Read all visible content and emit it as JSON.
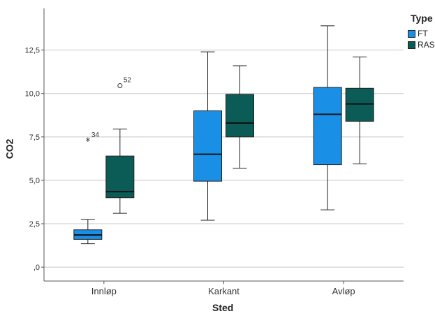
{
  "chart_data": {
    "type": "boxplot",
    "xlabel": "Sted",
    "ylabel": "CO2",
    "categories": [
      "Innløp",
      "Karkant",
      "Avløp"
    ],
    "ylim": [
      -0.8,
      14.9
    ],
    "yticks": [
      0,
      2.5,
      5,
      7.5,
      10,
      12.5
    ],
    "ytick_labels": [
      ",0",
      "2,5",
      "5,0",
      "7,5",
      "10,0",
      "12,5"
    ],
    "legend": {
      "title": "Type",
      "position": "top-right"
    },
    "grid": true,
    "series": [
      {
        "name": "FT",
        "color": "#1a8fe6",
        "boxes": [
          {
            "min": 1.35,
            "q1": 1.6,
            "median": 1.85,
            "q3": 2.15,
            "max": 2.75
          },
          {
            "min": 2.7,
            "q1": 4.95,
            "median": 6.5,
            "q3": 9.0,
            "max": 12.4
          },
          {
            "min": 3.3,
            "q1": 5.9,
            "median": 8.8,
            "q3": 10.35,
            "max": 13.9
          }
        ],
        "outliers": [
          {
            "category": "Innløp",
            "value": 7.3,
            "label": "34",
            "marker": "star"
          }
        ]
      },
      {
        "name": "RAS",
        "color": "#0b5b57",
        "boxes": [
          {
            "min": 3.1,
            "q1": 4.0,
            "median": 4.35,
            "q3": 6.4,
            "max": 7.95
          },
          {
            "min": 5.7,
            "q1": 7.5,
            "median": 8.3,
            "q3": 9.95,
            "max": 11.6
          },
          {
            "min": 5.95,
            "q1": 8.4,
            "median": 9.4,
            "q3": 10.3,
            "max": 12.1
          }
        ],
        "outliers": [
          {
            "category": "Innløp",
            "value": 10.45,
            "label": "52",
            "marker": "circle"
          }
        ]
      }
    ]
  }
}
